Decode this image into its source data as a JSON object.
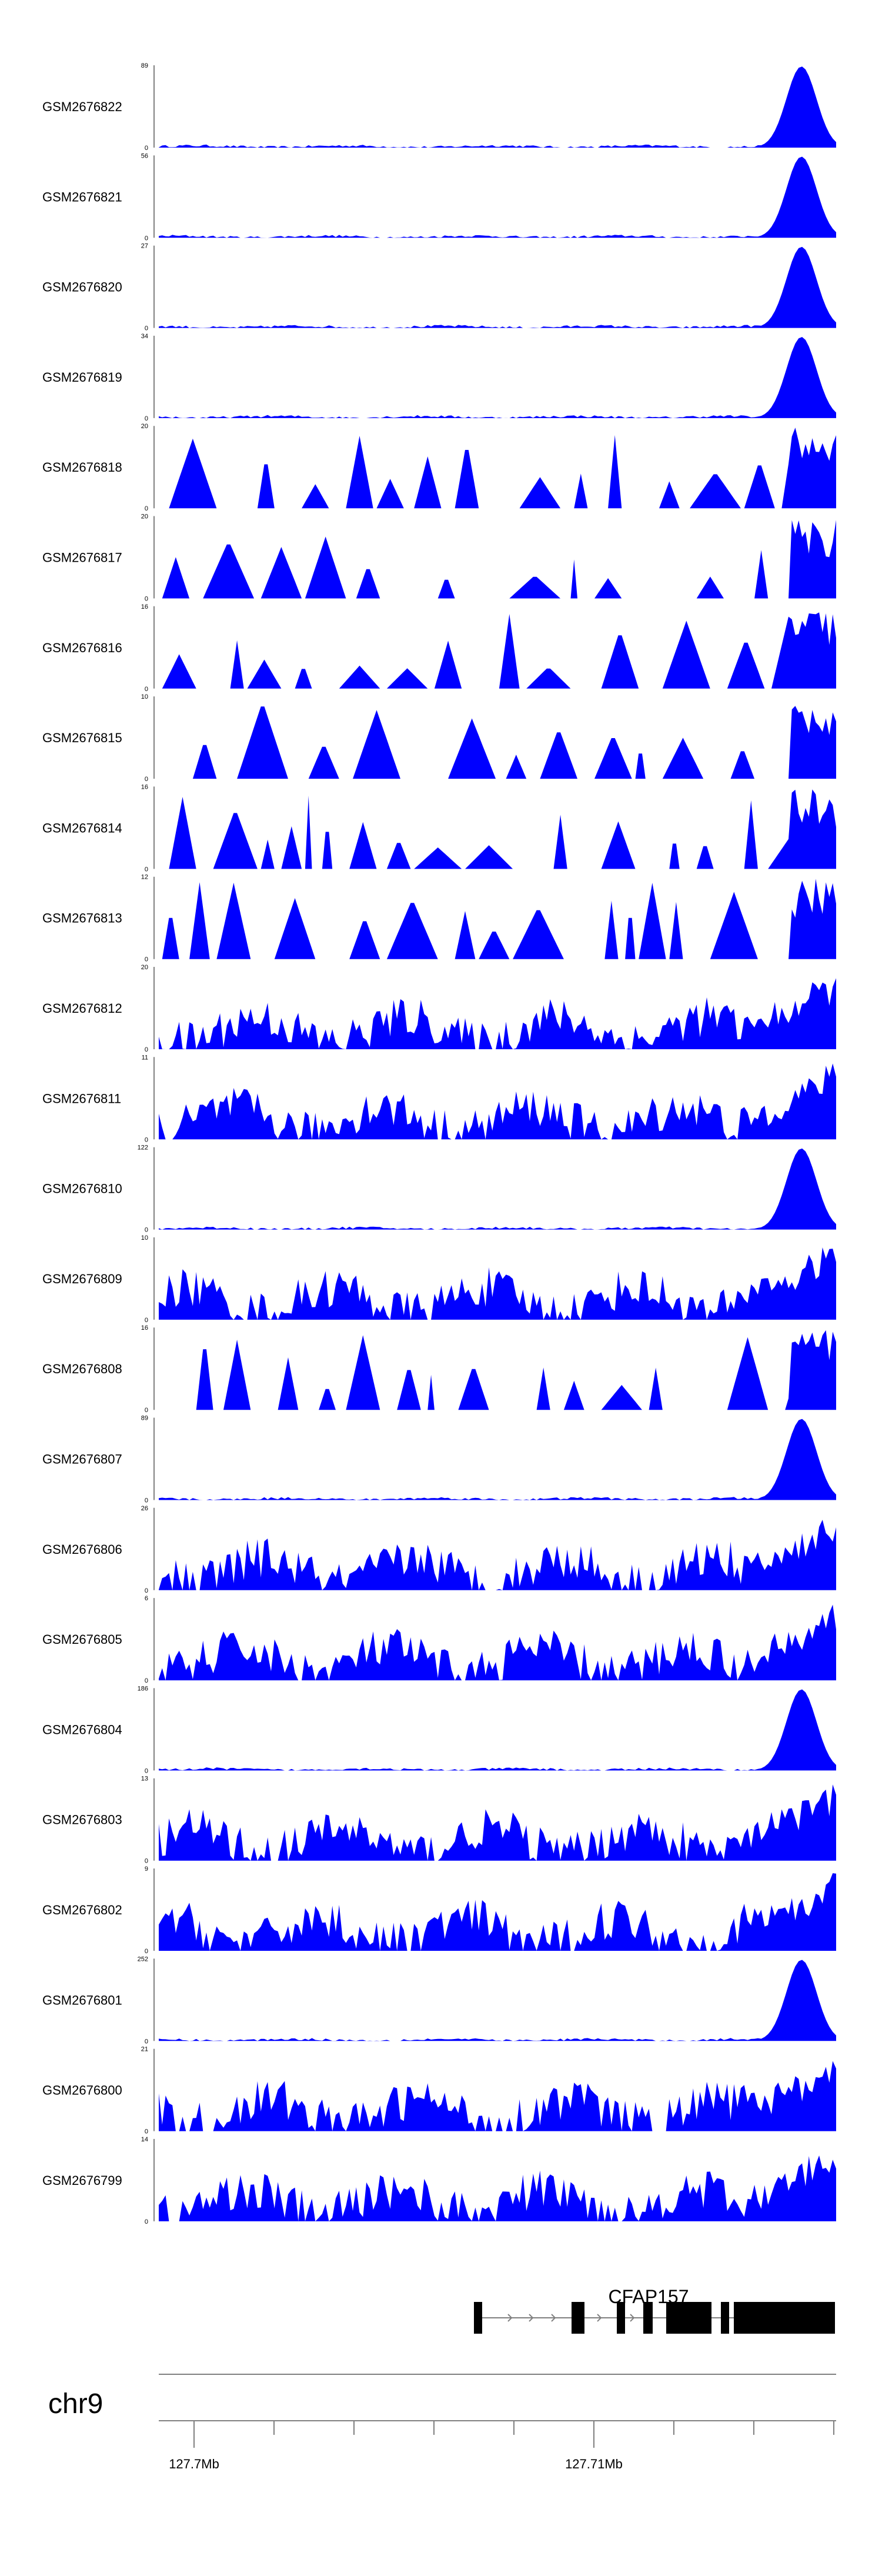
{
  "chart_data": {
    "type": "area",
    "tracks": [
      {
        "name": "GSM2676822",
        "ymax": "89",
        "ymin": "0"
      },
      {
        "name": "GSM2676821",
        "ymax": "56",
        "ymin": "0"
      },
      {
        "name": "GSM2676820",
        "ymax": "27",
        "ymin": "0"
      },
      {
        "name": "GSM2676819",
        "ymax": "34",
        "ymin": "0"
      },
      {
        "name": "GSM2676818",
        "ymax": "20",
        "ymin": "0"
      },
      {
        "name": "GSM2676817",
        "ymax": "20",
        "ymin": "0"
      },
      {
        "name": "GSM2676816",
        "ymax": "16",
        "ymin": "0"
      },
      {
        "name": "GSM2676815",
        "ymax": "10",
        "ymin": "0"
      },
      {
        "name": "GSM2676814",
        "ymax": "16",
        "ymin": "0"
      },
      {
        "name": "GSM2676813",
        "ymax": "12",
        "ymin": "0"
      },
      {
        "name": "GSM2676812",
        "ymax": "20",
        "ymin": "0"
      },
      {
        "name": "GSM2676811",
        "ymax": "11",
        "ymin": "0"
      },
      {
        "name": "GSM2676810",
        "ymax": "122",
        "ymin": "0"
      },
      {
        "name": "GSM2676809",
        "ymax": "10",
        "ymin": "0"
      },
      {
        "name": "GSM2676808",
        "ymax": "16",
        "ymin": "0"
      },
      {
        "name": "GSM2676807",
        "ymax": "89",
        "ymin": "0"
      },
      {
        "name": "GSM2676806",
        "ymax": "26",
        "ymin": "0"
      },
      {
        "name": "GSM2676805",
        "ymax": "6",
        "ymin": "0"
      },
      {
        "name": "GSM2676804",
        "ymax": "186",
        "ymin": "0"
      },
      {
        "name": "GSM2676803",
        "ymax": "13",
        "ymin": "0"
      },
      {
        "name": "GSM2676802",
        "ymax": "9",
        "ymin": "0"
      },
      {
        "name": "GSM2676801",
        "ymax": "252",
        "ymin": "0"
      },
      {
        "name": "GSM2676800",
        "ymax": "21",
        "ymin": "0"
      },
      {
        "name": "GSM2676799",
        "ymax": "14",
        "ymin": "0"
      }
    ],
    "gene": {
      "name": "CFAP157"
    },
    "chromosome": "chr9",
    "ticks": [
      "127.7Mb",
      "127.71Mb"
    ]
  },
  "colors": {
    "signal": "#0000ff",
    "axis": "#808080",
    "gene": "#000000",
    "intron": "#808080"
  }
}
